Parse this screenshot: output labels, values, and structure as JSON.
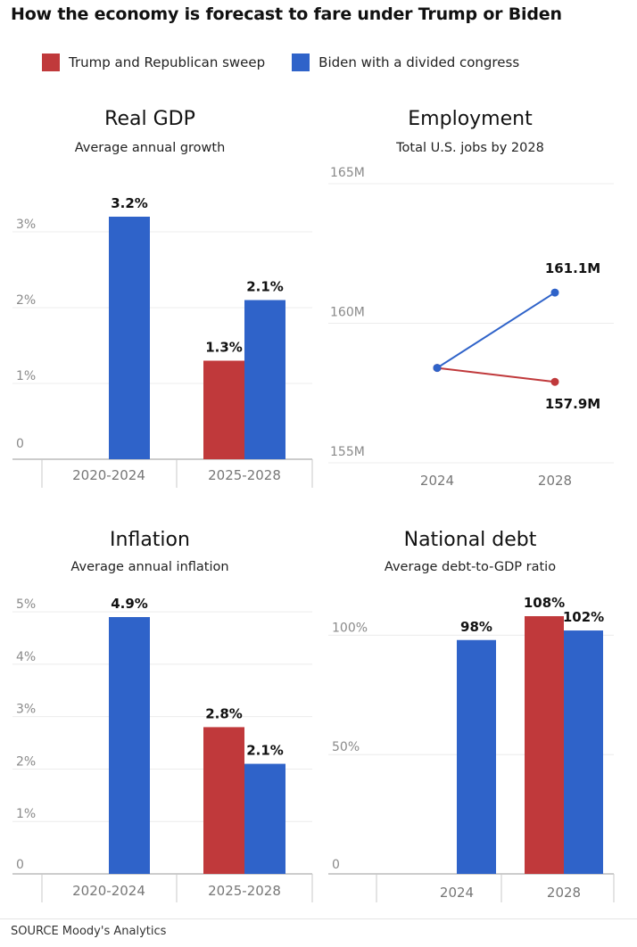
{
  "title": "How the economy is forecast to fare under Trump or Biden",
  "legend": [
    {
      "label": "Trump and Republican sweep",
      "color": "#c0393b"
    },
    {
      "label": "Biden with a divided congress",
      "color": "#2f63c9"
    }
  ],
  "source": "SOURCE Moody's Analytics",
  "chart_data": [
    {
      "type": "bar",
      "title": "Real GDP",
      "subtitle": "Average annual growth",
      "categories": [
        "2020-2024",
        "2025-2028"
      ],
      "series": [
        {
          "name": "Trump and Republican sweep",
          "values": [
            null,
            1.3
          ],
          "labels": [
            "",
            "1.3%"
          ]
        },
        {
          "name": "Biden with a divided congress",
          "values": [
            3.2,
            2.1
          ],
          "labels": [
            "3.2%",
            "2.1%"
          ]
        }
      ],
      "yticks": [
        0,
        1,
        2,
        3
      ],
      "ytick_labels": [
        "0",
        "1%",
        "2%",
        "3%"
      ],
      "ylim": [
        0,
        3.45
      ]
    },
    {
      "type": "line",
      "title": "Employment",
      "subtitle": "Total U.S. jobs by 2028",
      "x": [
        "2024",
        "2028"
      ],
      "series": [
        {
          "name": "Trump and Republican sweep",
          "values": [
            158.4,
            157.9
          ],
          "end_label": "157.9M"
        },
        {
          "name": "Biden with a divided congress",
          "values": [
            158.4,
            161.1
          ],
          "end_label": "161.1M"
        }
      ],
      "yticks": [
        155,
        160,
        165
      ],
      "ytick_labels": [
        "155M",
        "160M",
        "165M"
      ],
      "ylim": [
        155,
        165
      ]
    },
    {
      "type": "bar",
      "title": "Inflation",
      "subtitle": "Average annual inflation",
      "categories": [
        "2020-2024",
        "2025-2028"
      ],
      "series": [
        {
          "name": "Trump and Republican sweep",
          "values": [
            null,
            2.8
          ],
          "labels": [
            "",
            "2.8%"
          ]
        },
        {
          "name": "Biden with a divided congress",
          "values": [
            4.9,
            2.1
          ],
          "labels": [
            "4.9%",
            "2.1%"
          ]
        }
      ],
      "yticks": [
        0,
        1,
        2,
        3,
        4,
        5
      ],
      "ytick_labels": [
        "0",
        "1%",
        "2%",
        "3%",
        "4%",
        "5%"
      ],
      "ylim": [
        0,
        5.1
      ]
    },
    {
      "type": "bar",
      "title": "National debt",
      "subtitle": "Average debt-to-GDP ratio",
      "categories": [
        "2024",
        "2028"
      ],
      "series": [
        {
          "name": "Trump and Republican sweep",
          "values": [
            null,
            108
          ],
          "labels": [
            "",
            "108%"
          ]
        },
        {
          "name": "Biden with a divided congress",
          "values": [
            98,
            102
          ],
          "labels": [
            "98%",
            "102%"
          ]
        }
      ],
      "yticks": [
        0,
        50,
        100
      ],
      "ytick_labels": [
        "0",
        "50%",
        "100%"
      ],
      "ylim": [
        0,
        112
      ]
    }
  ]
}
